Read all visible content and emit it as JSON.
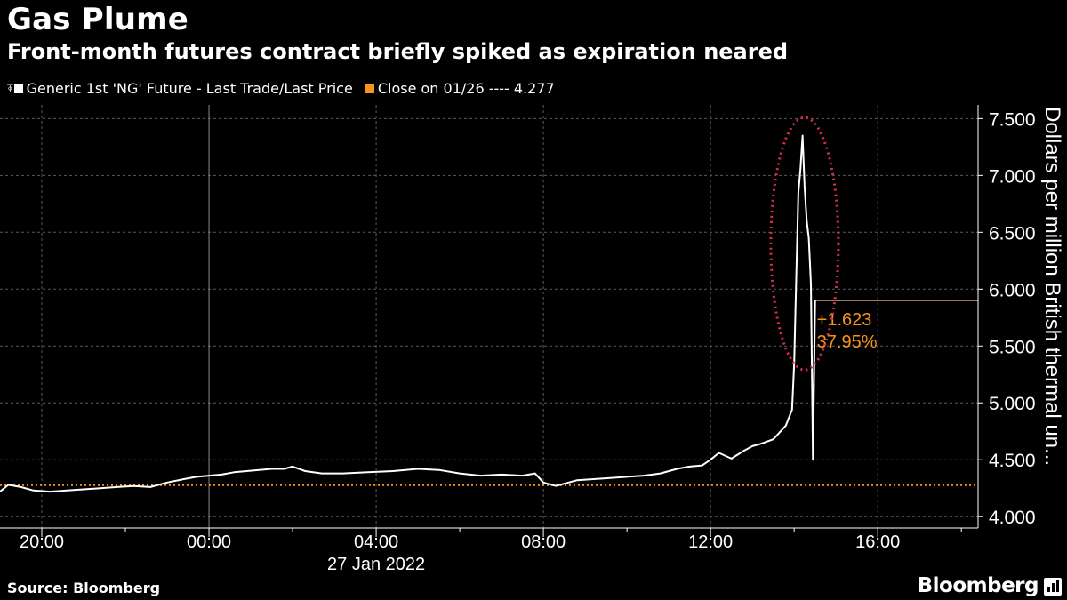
{
  "header": {
    "title": "Gas Plume",
    "subtitle": "Front-month futures contract briefly spiked as expiration neared"
  },
  "legend": {
    "series_label": "Generic 1st 'NG' Future - Last Trade/Last Price",
    "close_label": "Close on 01/26 ---- 4.277",
    "series_color": "#ffffff",
    "close_color": "#f7931e"
  },
  "footer": {
    "source": "Source: Bloomberg",
    "brand": "Bloomberg"
  },
  "chart_data": {
    "type": "line",
    "xlabel": "",
    "ylabel": "Dollars per million British thermal un...",
    "date_label": "27 Jan 2022",
    "x_range_hours": [
      -5.0,
      18.4
    ],
    "ylim": [
      3.9,
      7.62
    ],
    "y_ticks": [
      "4.000",
      "4.500",
      "5.000",
      "5.500",
      "6.000",
      "6.500",
      "7.000",
      "7.500"
    ],
    "x_ticks": [
      {
        "label": "20:00",
        "hour": -4
      },
      {
        "label": "00:00",
        "hour": 0
      },
      {
        "label": "04:00",
        "hour": 4
      },
      {
        "label": "08:00",
        "hour": 8
      },
      {
        "label": "12:00",
        "hour": 12
      },
      {
        "label": "16:00",
        "hour": 16
      }
    ],
    "y_axis_side": "right",
    "grid": true,
    "reference_line": {
      "name": "Close on 01/26",
      "value": 4.277
    },
    "last_value": 5.9,
    "annotation": {
      "change": "+1.623",
      "percent": "37.95%"
    },
    "highlight": "spike-circle",
    "series": [
      {
        "name": "Generic 1st 'NG' Future - Last Trade/Last Price",
        "hour": [
          -5.0,
          -4.8,
          -4.5,
          -4.2,
          -3.8,
          -3.4,
          -3.0,
          -2.6,
          -2.2,
          -1.8,
          -1.4,
          -1.0,
          -0.6,
          -0.3,
          0.0,
          0.3,
          0.6,
          0.9,
          1.2,
          1.5,
          1.8,
          2.0,
          2.3,
          2.7,
          3.2,
          3.8,
          4.4,
          5.0,
          5.5,
          6.0,
          6.5,
          7.0,
          7.5,
          7.8,
          8.0,
          8.3,
          8.5,
          8.8,
          9.2,
          9.6,
          10.0,
          10.4,
          10.8,
          11.2,
          11.5,
          11.8,
          12.0,
          12.2,
          12.5,
          12.8,
          13.0,
          13.2,
          13.5,
          13.8,
          13.95,
          14.0,
          14.05,
          14.1,
          14.15,
          14.2,
          14.25,
          14.3,
          14.35,
          14.4,
          14.45,
          14.5
        ],
        "values": [
          4.22,
          4.28,
          4.26,
          4.23,
          4.22,
          4.23,
          4.24,
          4.25,
          4.26,
          4.27,
          4.26,
          4.3,
          4.33,
          4.35,
          4.36,
          4.37,
          4.39,
          4.4,
          4.41,
          4.42,
          4.42,
          4.44,
          4.4,
          4.38,
          4.38,
          4.39,
          4.4,
          4.42,
          4.41,
          4.38,
          4.36,
          4.37,
          4.36,
          4.38,
          4.3,
          4.27,
          4.29,
          4.32,
          4.33,
          4.34,
          4.35,
          4.36,
          4.38,
          4.42,
          4.44,
          4.45,
          4.5,
          4.56,
          4.51,
          4.58,
          4.62,
          4.64,
          4.68,
          4.8,
          4.94,
          5.35,
          6.1,
          6.85,
          7.05,
          7.35,
          6.9,
          6.6,
          6.45,
          6.05,
          4.5,
          5.9
        ]
      }
    ]
  }
}
